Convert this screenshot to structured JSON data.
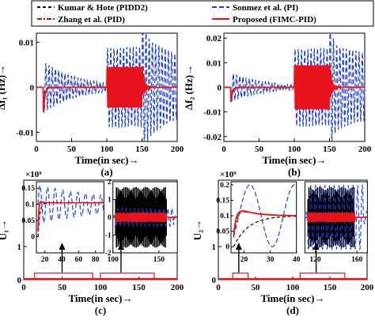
{
  "legend": {
    "entries": [
      {
        "label": "Kumar & Hote (PIDD2)",
        "color": "#000000",
        "dash": "4,3"
      },
      {
        "label": "Sonmez et al. (PI)",
        "color": "#1f3fd6",
        "dash": "6,3"
      },
      {
        "label": "Zhang et al. (PID)",
        "color": "#8b2500",
        "dash": "6,2,2,2"
      },
      {
        "label": "Proposed (FIMC-PID)",
        "color": "#e8141b",
        "dash": ""
      }
    ]
  },
  "panels": {
    "a": {
      "label": "(a)",
      "xlabel": "Time(in sec)→",
      "ylabel": "Δf₁ (Hz)→"
    },
    "b": {
      "label": "(b)",
      "xlabel": "Time(in sec)→",
      "ylabel": "Δf₂ (Hz)→"
    },
    "c": {
      "label": "(c)",
      "xlabel": "Time(in sec)→",
      "ylabel": "U₁→",
      "exponent": "×10⁹"
    },
    "d": {
      "label": "(d)",
      "xlabel": "Time(in sec)→",
      "ylabel": "U₂→",
      "exponent": "×10⁹"
    }
  },
  "chart_data": [
    {
      "id": "a",
      "type": "line",
      "xlim": [
        0,
        200
      ],
      "ylim": [
        -0.012,
        0.012
      ],
      "xticks": [
        0,
        50,
        100,
        150,
        200
      ],
      "yticks": [
        -0.01,
        0,
        0.01
      ],
      "ytick_labels": [
        "-0.01",
        "0",
        "0.01"
      ],
      "series": [
        {
          "name": "Kumar & Hote (PIDD2)",
          "disturbances": [
            {
              "t0": 10,
              "t1": 100,
              "amp": -0.003,
              "freq": 0.0,
              "decay": 0.6
            },
            {
              "t0": 100,
              "t1": 150,
              "amp": 0.0028,
              "freq": 0.5,
              "decay": 0.0
            },
            {
              "t0": 150,
              "t1": 200,
              "amp": 0.002,
              "freq": 0.1,
              "decay": 0.7
            }
          ]
        },
        {
          "name": "Sonmez et al. (PI)",
          "disturbances": [
            {
              "t0": 10,
              "t1": 100,
              "amp": -0.0058,
              "freq": 0.22,
              "decay": 0.02
            },
            {
              "t0": 100,
              "t1": 150,
              "amp": 0.009,
              "freq": 0.22,
              "decay": 0.0
            },
            {
              "t0": 150,
              "t1": 200,
              "amp": 0.012,
              "freq": 0.22,
              "decay": 0.01
            }
          ]
        },
        {
          "name": "Zhang et al. (PID)",
          "disturbances": [
            {
              "t0": 10,
              "t1": 100,
              "amp": -0.0045,
              "freq": 0.0,
              "decay": 0.5
            },
            {
              "t0": 100,
              "t1": 150,
              "amp": 0.004,
              "freq": 0.5,
              "decay": 0.0
            },
            {
              "t0": 150,
              "t1": 200,
              "amp": 0.003,
              "freq": 0.1,
              "decay": 0.6
            }
          ]
        },
        {
          "name": "Proposed (FIMC-PID)",
          "disturbances": [
            {
              "t0": 10,
              "t1": 100,
              "amp": -0.0055,
              "freq": 0.0,
              "decay": 0.45
            },
            {
              "t0": 100,
              "t1": 150,
              "amp": 0.0045,
              "freq": 0.5,
              "decay": 0.0
            },
            {
              "t0": 150,
              "t1": 200,
              "amp": 0.0035,
              "freq": 0.1,
              "decay": 0.6
            }
          ]
        }
      ]
    },
    {
      "id": "b",
      "type": "line",
      "xlim": [
        0,
        200
      ],
      "ylim": [
        -0.022,
        0.022
      ],
      "xticks": [
        0,
        50,
        100,
        150,
        200
      ],
      "yticks": [
        -0.02,
        -0.01,
        0,
        0.01,
        0.02
      ],
      "ytick_labels": [
        "-0.02",
        "-0.01",
        "0",
        "0.01",
        "0.02"
      ],
      "series": [
        {
          "name": "Kumar & Hote (PIDD2)",
          "disturbances": [
            {
              "t0": 10,
              "t1": 100,
              "amp": -0.004,
              "freq": 0.0,
              "decay": 0.5
            },
            {
              "t0": 100,
              "t1": 150,
              "amp": 0.004,
              "freq": 0.5,
              "decay": 0.0
            },
            {
              "t0": 150,
              "t1": 200,
              "amp": 0.003,
              "freq": 0.1,
              "decay": 0.6
            }
          ]
        },
        {
          "name": "Sonmez et al. (PI)",
          "disturbances": [
            {
              "t0": 10,
              "t1": 100,
              "amp": -0.006,
              "freq": 0.22,
              "decay": 0.02
            },
            {
              "t0": 100,
              "t1": 150,
              "amp": 0.016,
              "freq": 0.22,
              "decay": 0.0
            },
            {
              "t0": 150,
              "t1": 200,
              "amp": 0.018,
              "freq": 0.22,
              "decay": 0.005
            }
          ]
        },
        {
          "name": "Zhang et al. (PID)",
          "disturbances": [
            {
              "t0": 10,
              "t1": 100,
              "amp": -0.005,
              "freq": 0.0,
              "decay": 0.5
            },
            {
              "t0": 100,
              "t1": 150,
              "amp": 0.007,
              "freq": 0.5,
              "decay": 0.0
            },
            {
              "t0": 150,
              "t1": 200,
              "amp": 0.004,
              "freq": 0.1,
              "decay": 0.6
            }
          ]
        },
        {
          "name": "Proposed (FIMC-PID)",
          "disturbances": [
            {
              "t0": 10,
              "t1": 100,
              "amp": -0.006,
              "freq": 0.0,
              "decay": 0.45
            },
            {
              "t0": 100,
              "t1": 150,
              "amp": 0.009,
              "freq": 0.5,
              "decay": 0.0
            },
            {
              "t0": 150,
              "t1": 200,
              "amp": 0.005,
              "freq": 0.1,
              "decay": 0.6
            }
          ]
        }
      ]
    },
    {
      "id": "c",
      "type": "line",
      "xlim": [
        0,
        200
      ],
      "ylim": [
        0,
        3
      ],
      "xticks": [
        0,
        50,
        100,
        150,
        200
      ],
      "yticks": [
        0,
        1
      ],
      "ytick_labels": [
        "0",
        "1"
      ],
      "inset_left": {
        "xlim": [
          10,
          90
        ],
        "ylim": [
          -0.05,
          0.17
        ],
        "xticks": [
          20,
          40,
          60,
          80
        ],
        "yticks": [
          0,
          0.05,
          0.1,
          0.15
        ],
        "ytick_labels": [
          "0",
          "0.05",
          "0.1",
          "0.15"
        ]
      },
      "inset_right": {
        "xlim": [
          100,
          170
        ],
        "ylim": [
          -2,
          2
        ],
        "xticks": [
          100,
          150
        ],
        "yticks": [
          -2,
          -1,
          0,
          1,
          2
        ],
        "ytick_labels": [
          "-2",
          "-1",
          "0",
          "1",
          "2"
        ]
      }
    },
    {
      "id": "d",
      "type": "line",
      "xlim": [
        0,
        200
      ],
      "ylim": [
        0,
        3
      ],
      "xticks": [
        0,
        50,
        100,
        150,
        200
      ],
      "yticks": [
        0,
        1
      ],
      "ytick_labels": [
        "0",
        "1"
      ],
      "inset_left": {
        "xlim": [
          15,
          40
        ],
        "ylim": [
          -0.02,
          0.21
        ],
        "xticks": [
          20,
          30,
          40
        ],
        "yticks": [
          0,
          0.05,
          0.1,
          0.15,
          0.2
        ],
        "ytick_labels": [
          "0",
          "0.05",
          "0.1",
          "0.15",
          "0.2"
        ]
      },
      "inset_right": {
        "xlim": [
          110,
          170
        ],
        "ylim": [
          -2,
          2
        ],
        "xticks": [
          120,
          160
        ],
        "yticks": [],
        "ytick_labels": []
      }
    }
  ]
}
